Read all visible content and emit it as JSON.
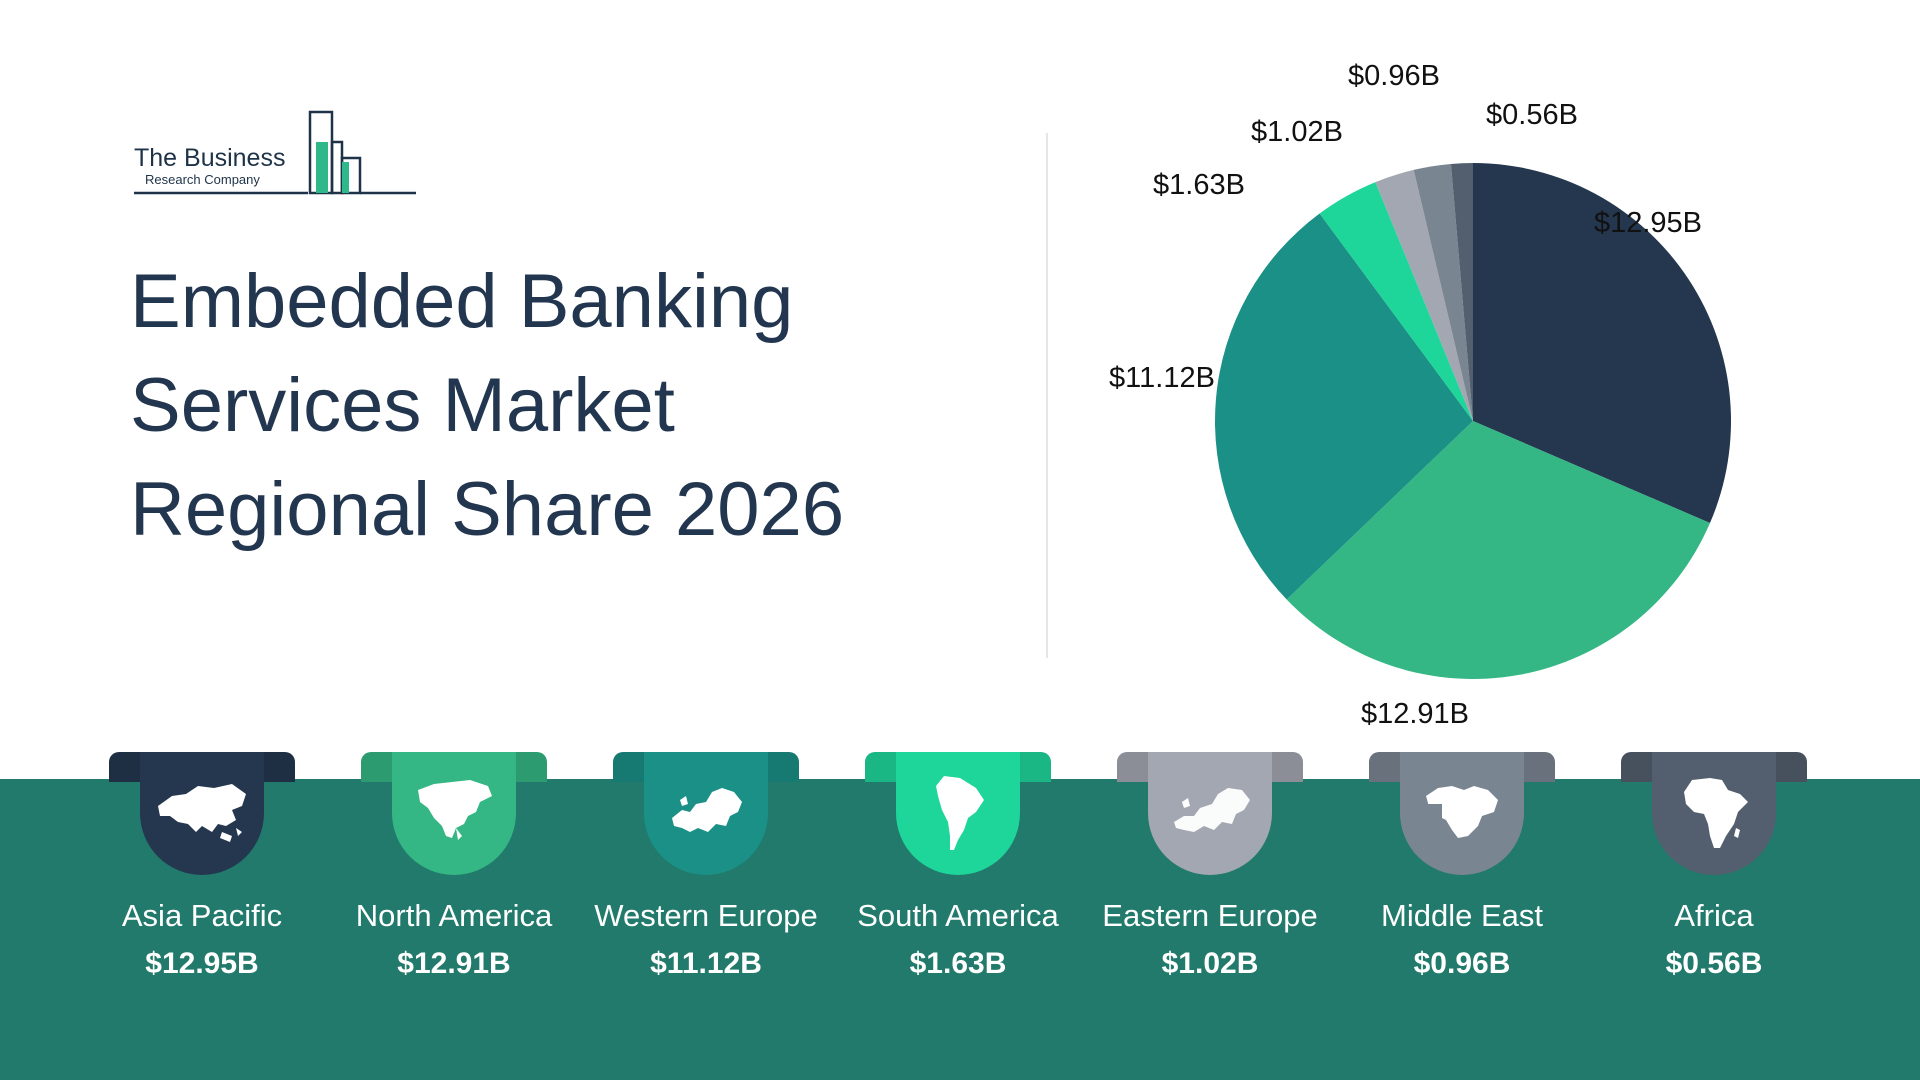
{
  "logo": {
    "line1": "The Business",
    "line2": "Research Company",
    "color": "#1e3348",
    "accent": "#2fb98a"
  },
  "title_lines": [
    "Embedded Banking",
    "Services Market",
    "Regional Share 2026"
  ],
  "chart_data": {
    "type": "pie",
    "title": "Embedded Banking Services Market Regional Share 2026",
    "categories": [
      "Asia Pacific",
      "North America",
      "Western Europe",
      "South America",
      "Eastern Europe",
      "Middle East",
      "Africa"
    ],
    "values": [
      12.95,
      12.91,
      11.12,
      1.63,
      1.02,
      0.96,
      0.56
    ],
    "value_labels": [
      "$12.95B",
      "$12.91B",
      "$11.12B",
      "$1.63B",
      "$1.02B",
      "$0.96B",
      "$0.56B"
    ],
    "colors": [
      "#24374f",
      "#34b784",
      "#1b9086",
      "#1fd69a",
      "#a3a7b1",
      "#7a8592",
      "#535f6e"
    ],
    "unit": "$B",
    "start": "12 o'clock, clockwise",
    "legend": "bottom"
  },
  "regions": [
    {
      "name": "Asia Pacific",
      "value": "$12.95B",
      "color": "#24374f",
      "icon": "asia-map-icon"
    },
    {
      "name": "North America",
      "value": "$12.91B",
      "color": "#34b784",
      "icon": "north-america-map-icon"
    },
    {
      "name": "Western Europe",
      "value": "$11.12B",
      "color": "#1b9086",
      "icon": "western-europe-map-icon"
    },
    {
      "name": "South America",
      "value": "$1.63B",
      "color": "#1fd69a",
      "icon": "south-america-map-icon"
    },
    {
      "name": "Eastern Europe",
      "value": "$1.02B",
      "color": "#a3a7b1",
      "icon": "eastern-europe-map-icon"
    },
    {
      "name": "Middle East",
      "value": "$0.96B",
      "color": "#7a8592",
      "icon": "middle-east-map-icon"
    },
    {
      "name": "Africa",
      "value": "$0.56B",
      "color": "#535f6e",
      "icon": "africa-map-icon"
    }
  ],
  "band_color": "#217a6b"
}
